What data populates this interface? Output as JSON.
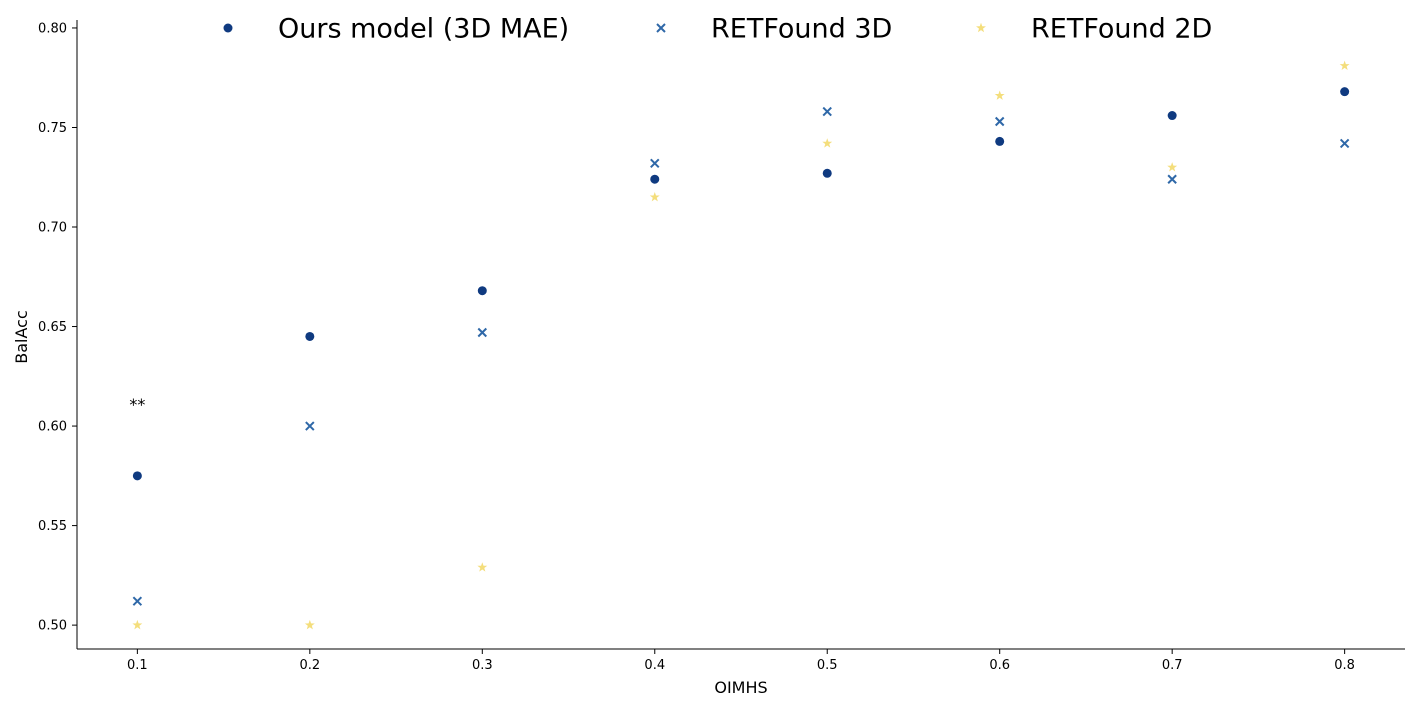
{
  "chart_data": {
    "type": "scatter",
    "title": "",
    "xlabel": "OIMHS",
    "ylabel": "BalAcc",
    "xlim": [
      0.065,
      0.835
    ],
    "ylim": [
      0.488,
      0.804
    ],
    "grid": false,
    "legend_position": "top",
    "x_ticks": [
      0.1,
      0.2,
      0.3,
      0.4,
      0.5,
      0.6,
      0.7,
      0.8
    ],
    "x_tick_labels": [
      "0.1",
      "0.2",
      "0.3",
      "0.4",
      "0.5",
      "0.6",
      "0.7",
      "0.8"
    ],
    "y_ticks": [
      0.5,
      0.55,
      0.6,
      0.65,
      0.7,
      0.75,
      0.8
    ],
    "y_tick_labels": [
      "0.50",
      "0.55",
      "0.60",
      "0.65",
      "0.70",
      "0.75",
      "0.80"
    ],
    "x": [
      0.1,
      0.2,
      0.3,
      0.4,
      0.5,
      0.6,
      0.7,
      0.8
    ],
    "series": [
      {
        "name": "Ours model (3D MAE)",
        "marker": "circle",
        "color": "#0f3a80",
        "values": [
          0.575,
          0.645,
          0.668,
          0.724,
          0.727,
          0.743,
          0.756,
          0.768
        ]
      },
      {
        "name": "RETFound 3D",
        "marker": "x",
        "color": "#2f68a8",
        "values": [
          0.512,
          0.6,
          0.647,
          0.732,
          0.758,
          0.753,
          0.724,
          0.742
        ]
      },
      {
        "name": "RETFound 2D",
        "marker": "star",
        "color": "#f4de7c",
        "values": [
          0.5,
          0.5,
          0.529,
          0.715,
          0.742,
          0.766,
          0.73,
          0.781
        ]
      }
    ],
    "annotations": [
      {
        "text": "**",
        "x": 0.1,
        "y": 0.608
      }
    ]
  }
}
